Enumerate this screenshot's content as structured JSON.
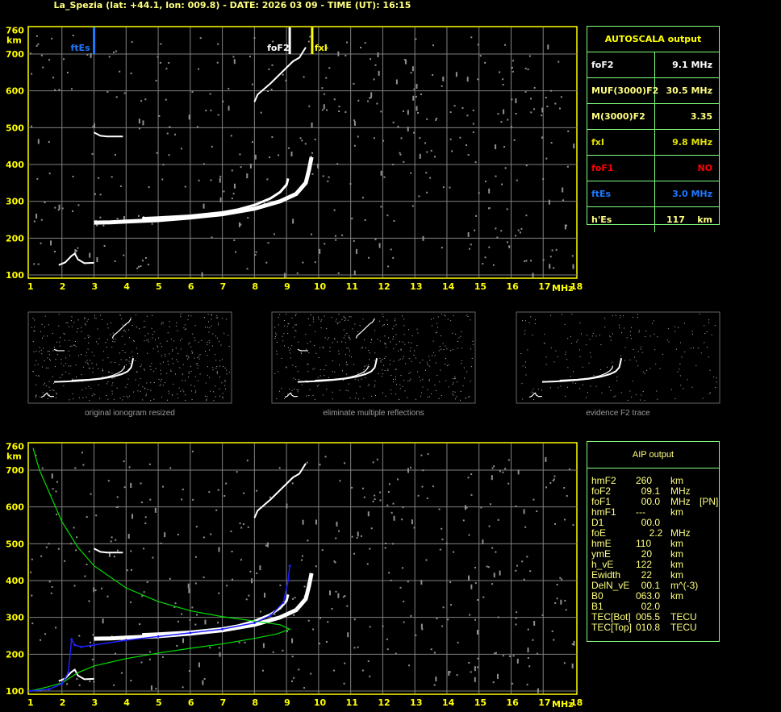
{
  "title": "La_Spezia (lat: +44.1, lon: 009.8) - DATE: 2026 03 09 - TIME (UT): 16:15",
  "colors": {
    "axis": "#ffff00",
    "grid": "#808080",
    "trace": "#ffffff",
    "noise": "#909090",
    "ftEs": "#1e78ff",
    "fxI": "#ffff00",
    "profile": "#00e000",
    "fit": "#2020ff",
    "table_border": "#80ff80"
  },
  "autoscala": {
    "title": "AUTOSCALA output",
    "rows": [
      {
        "k": "foF2",
        "v": "9.1 MHz",
        "color": "#ffffff"
      },
      {
        "k": "MUF(3000)F2",
        "v": "30.5 MHz",
        "color": "#ffff80"
      },
      {
        "k": "M(3000)F2",
        "v": "3.35",
        "color": "#ffff80"
      },
      {
        "k": "fxI",
        "v": "9.8 MHz",
        "color": "#e0e000"
      },
      {
        "k": "foF1",
        "v": "NO",
        "color": "#ff0000"
      },
      {
        "k": "ftEs",
        "v": "3.0 MHz",
        "color": "#1e78ff"
      },
      {
        "k": "h'Es",
        "v": "117    km",
        "color": "#ffff80"
      }
    ]
  },
  "aip": {
    "title": "AIP output",
    "rows": [
      [
        "hmF2",
        "260",
        "km",
        ""
      ],
      [
        "foF2",
        "  09.1",
        "MHz",
        ""
      ],
      [
        "foF1",
        "  00.0",
        "MHz",
        "[PN]"
      ],
      [
        "hmF1",
        "---",
        "km",
        ""
      ],
      [
        "D1",
        "  00.0",
        "",
        ""
      ],
      [
        "foE",
        "     2.2",
        "MHz",
        ""
      ],
      [
        "hmE",
        "110",
        "km",
        ""
      ],
      [
        "ymE",
        "  20",
        "km",
        ""
      ],
      [
        "h_vE",
        "122",
        "km",
        ""
      ],
      [
        "Ewidth",
        "  22",
        "km",
        ""
      ],
      [
        "DelN_vE",
        "  00.1",
        "m^(-3)",
        ""
      ],
      [
        "B0",
        "063.0",
        "km",
        ""
      ],
      [
        "B1",
        "  02.0",
        "",
        ""
      ],
      [
        "TEC[Bot]",
        "005.5",
        "TECU",
        ""
      ],
      [
        "TEC[Top]",
        "010.8",
        "TECU",
        ""
      ]
    ]
  },
  "thumbnails": [
    "original ionogram resized",
    "eliminate multiple reflections",
    "evidence F2 trace"
  ],
  "chart_data": {
    "type": "scatter",
    "xlim": [
      1,
      18
    ],
    "ylim": [
      100,
      760
    ],
    "xticks": [
      1,
      2,
      3,
      4,
      5,
      6,
      7,
      8,
      9,
      10,
      11,
      12,
      13,
      14,
      15,
      16,
      17,
      18
    ],
    "yticks": [
      100,
      200,
      300,
      400,
      500,
      600,
      700,
      760
    ],
    "xlabel": "MHz",
    "ylabel": "km",
    "grid": true,
    "markers": [
      {
        "label": "ftEs",
        "x": 3.0,
        "color": "#1e78ff"
      },
      {
        "label": "foF2",
        "x": 9.1,
        "color": "#ffffff"
      },
      {
        "label": "fxI",
        "x": 9.8,
        "color": "#ffff00"
      }
    ],
    "traces": {
      "o_trace": [
        [
          4.5,
          254
        ],
        [
          5,
          256
        ],
        [
          6,
          261
        ],
        [
          7,
          270
        ],
        [
          7.5,
          278
        ],
        [
          8,
          290
        ],
        [
          8.5,
          308
        ],
        [
          8.8,
          325
        ],
        [
          9.0,
          345
        ],
        [
          9.05,
          362
        ]
      ],
      "x_trace": [
        [
          3.0,
          242
        ],
        [
          3.5,
          243
        ],
        [
          4,
          245
        ],
        [
          5,
          249
        ],
        [
          6,
          256
        ],
        [
          7,
          265
        ],
        [
          8,
          280
        ],
        [
          8.8,
          300
        ],
        [
          9.3,
          320
        ],
        [
          9.6,
          350
        ],
        [
          9.7,
          385
        ],
        [
          9.78,
          420
        ]
      ],
      "es_trace": [
        [
          1.9,
          127
        ],
        [
          2.1,
          134
        ],
        [
          2.3,
          152
        ],
        [
          2.4,
          158
        ],
        [
          2.5,
          142
        ],
        [
          2.7,
          132
        ],
        [
          3.0,
          133
        ]
      ],
      "es_multiple": [
        [
          3.0,
          487
        ],
        [
          3.2,
          478
        ],
        [
          3.4,
          476
        ],
        [
          3.6,
          476
        ],
        [
          3.9,
          476
        ]
      ],
      "f_second_hop": [
        [
          8.0,
          570
        ],
        [
          8.1,
          590
        ],
        [
          8.5,
          620
        ],
        [
          9.2,
          680
        ],
        [
          9.4,
          690
        ],
        [
          9.6,
          718
        ]
      ]
    },
    "profile": [
      [
        1,
        100
      ],
      [
        1.5,
        110
      ],
      [
        2,
        122
      ],
      [
        2.5,
        150
      ],
      [
        3,
        168
      ],
      [
        4,
        188
      ],
      [
        5,
        203
      ],
      [
        6,
        216
      ],
      [
        7,
        228
      ],
      [
        8,
        243
      ],
      [
        8.7,
        255
      ],
      [
        9.1,
        268
      ],
      [
        8.8,
        280
      ],
      [
        8,
        290
      ],
      [
        7,
        302
      ],
      [
        6,
        318
      ],
      [
        5,
        343
      ],
      [
        4,
        380
      ],
      [
        3,
        440
      ],
      [
        2.5,
        490
      ],
      [
        2,
        560
      ],
      [
        1.6,
        640
      ],
      [
        1.3,
        700
      ],
      [
        1.1,
        760
      ]
    ],
    "fitted_o_trace": [
      [
        1,
        100
      ],
      [
        1.6,
        105
      ],
      [
        2,
        120
      ],
      [
        2.2,
        150
      ],
      [
        2.3,
        240
      ],
      [
        2.4,
        225
      ],
      [
        2.6,
        220
      ],
      [
        3,
        225
      ],
      [
        4,
        238
      ],
      [
        5,
        248
      ],
      [
        6,
        258
      ],
      [
        7,
        268
      ],
      [
        8,
        285
      ],
      [
        8.5,
        305
      ],
      [
        8.9,
        340
      ],
      [
        9.05,
        400
      ],
      [
        9.1,
        440
      ]
    ]
  }
}
